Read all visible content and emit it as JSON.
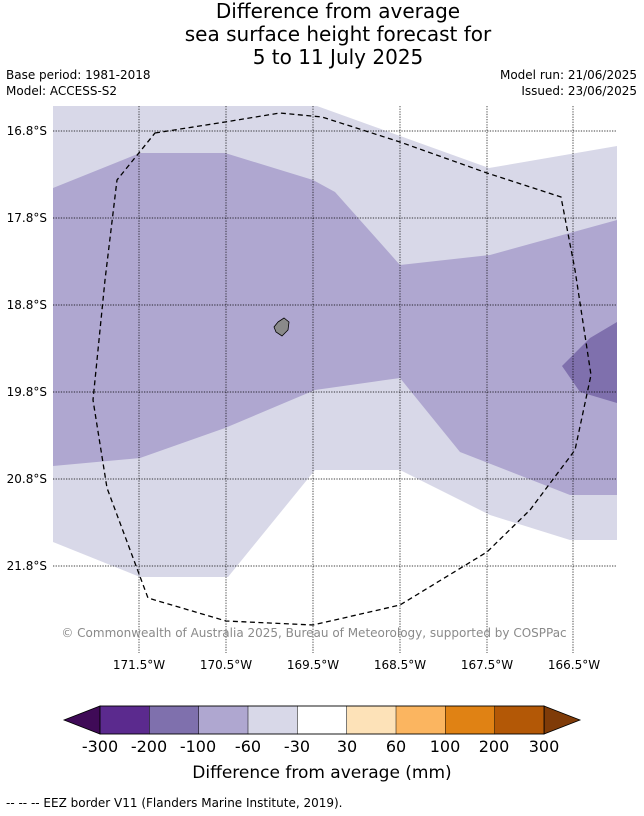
{
  "title": {
    "line1": "Difference from average",
    "line2": "sea surface height forecast for",
    "line3": "5 to 11 July 2025"
  },
  "meta": {
    "base_period": "Base period: 1981-2018",
    "model": "Model: ACCESS-S2",
    "model_run": "Model run: 21/06/2025",
    "issued": "Issued: 23/06/2025"
  },
  "map": {
    "lat_labels": [
      "16.8°S",
      "17.8°S",
      "18.8°S",
      "19.8°S",
      "20.8°S",
      "21.8°S"
    ],
    "lon_labels": [
      "171.5°W",
      "170.5°W",
      "169.5°W",
      "168.5°W",
      "167.5°W",
      "166.5°W"
    ],
    "copyright": "© Commonwealth of Australia 2025, Bureau of Meteorology, supported by COSPPac",
    "border_style": "dashed",
    "island_color": "#8a8a8a"
  },
  "legend": {
    "title": "Difference from average (mm)",
    "ticks": [
      "-300",
      "-200",
      "-100",
      "-60",
      "-30",
      "30",
      "60",
      "100",
      "200",
      "300"
    ],
    "colors": [
      "#5b2a8e",
      "#7f70ad",
      "#afa7d0",
      "#d8d8e8",
      "#ffffff",
      "#fde2b8",
      "#fbb560",
      "#e08214",
      "#b35806"
    ],
    "under_color": "#3f0a57",
    "over_color": "#7f3b08"
  },
  "footnote": "-- -- -- EEZ border V11 (Flanders Marine Institute, 2019)."
}
